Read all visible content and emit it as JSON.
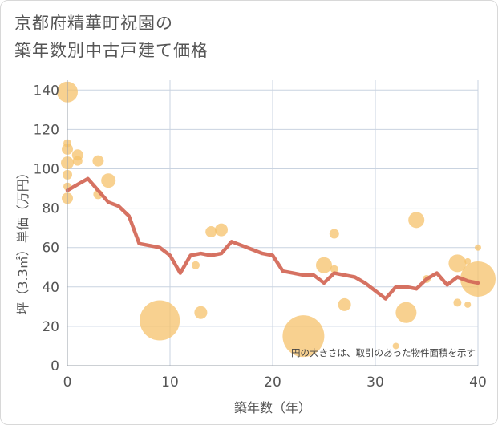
{
  "chart_data": {
    "type": "scatter",
    "title_lines": [
      "京都府精華町祝園の",
      "築年数別中古戸建て価格"
    ],
    "xlabel": "築年数（年）",
    "ylabel": "坪（3.3㎡）単価（万円）",
    "xlim": [
      0,
      40
    ],
    "ylim": [
      0,
      145
    ],
    "x_ticks": [
      0,
      10,
      20,
      30,
      40
    ],
    "y_ticks": [
      0,
      20,
      40,
      60,
      80,
      100,
      120,
      140
    ],
    "grid": true,
    "note": "円の大きさは、取引のあった物件面積を示す",
    "colors": {
      "bubble": "#f5c26b",
      "line": "#d46a5a",
      "grid": "#c9d3e0",
      "axis": "#9aa0a8"
    },
    "bubbles": [
      {
        "x": 0,
        "y": 139,
        "size": 13
      },
      {
        "x": 0,
        "y": 113,
        "size": 5
      },
      {
        "x": 0,
        "y": 110,
        "size": 7
      },
      {
        "x": 0,
        "y": 103,
        "size": 8
      },
      {
        "x": 0,
        "y": 97,
        "size": 6
      },
      {
        "x": 0,
        "y": 91,
        "size": 5
      },
      {
        "x": 0,
        "y": 85,
        "size": 7
      },
      {
        "x": 1,
        "y": 107,
        "size": 7
      },
      {
        "x": 1,
        "y": 104,
        "size": 6
      },
      {
        "x": 3,
        "y": 104,
        "size": 7
      },
      {
        "x": 3,
        "y": 87,
        "size": 6
      },
      {
        "x": 4,
        "y": 94,
        "size": 9
      },
      {
        "x": 9,
        "y": 23,
        "size": 25
      },
      {
        "x": 12.5,
        "y": 51,
        "size": 5
      },
      {
        "x": 13,
        "y": 27,
        "size": 8
      },
      {
        "x": 14,
        "y": 68,
        "size": 7
      },
      {
        "x": 15,
        "y": 69,
        "size": 8
      },
      {
        "x": 23,
        "y": 15,
        "size": 26
      },
      {
        "x": 25,
        "y": 51,
        "size": 10
      },
      {
        "x": 26,
        "y": 49,
        "size": 5
      },
      {
        "x": 26,
        "y": 67,
        "size": 6
      },
      {
        "x": 27,
        "y": 31,
        "size": 8
      },
      {
        "x": 32,
        "y": 10,
        "size": 4
      },
      {
        "x": 33,
        "y": 27,
        "size": 13
      },
      {
        "x": 34,
        "y": 74,
        "size": 10
      },
      {
        "x": 35,
        "y": 44,
        "size": 5
      },
      {
        "x": 38,
        "y": 52,
        "size": 11
      },
      {
        "x": 38,
        "y": 32,
        "size": 5
      },
      {
        "x": 39,
        "y": 53,
        "size": 4
      },
      {
        "x": 39,
        "y": 31,
        "size": 4
      },
      {
        "x": 40,
        "y": 60,
        "size": 4
      },
      {
        "x": 40,
        "y": 44,
        "size": 22
      }
    ],
    "line": {
      "x": [
        0,
        1,
        2,
        3,
        4,
        5,
        6,
        7,
        8,
        9,
        10,
        11,
        12,
        13,
        14,
        15,
        16,
        17,
        18,
        19,
        20,
        21,
        22,
        23,
        24,
        25,
        26,
        27,
        28,
        29,
        30,
        31,
        32,
        33,
        34,
        35,
        36,
        37,
        38,
        39,
        40
      ],
      "y": [
        89,
        92,
        95,
        89,
        83,
        81,
        76,
        62,
        61,
        60,
        56,
        47,
        56,
        57,
        56,
        57,
        63,
        61,
        59,
        57,
        56,
        48,
        47,
        46,
        46,
        42,
        47,
        46,
        45,
        42,
        38,
        34,
        40,
        40,
        39,
        44,
        47,
        41,
        45,
        43,
        42
      ]
    }
  }
}
